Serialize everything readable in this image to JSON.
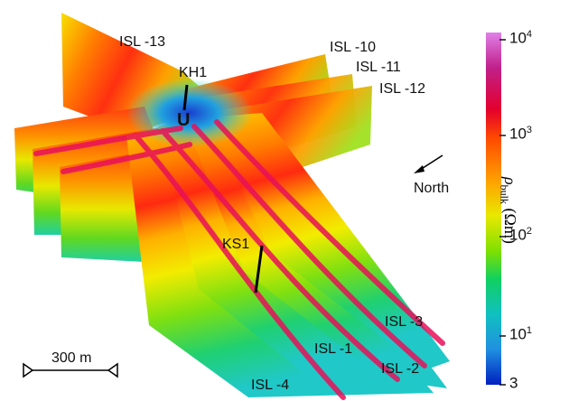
{
  "profiles": {
    "isl_13": "ISL -13",
    "isl_10": "ISL -10",
    "isl_11": "ISL -11",
    "isl_12": "ISL -12",
    "isl_1": "ISL -1",
    "isl_2": "ISL -2",
    "isl_3": "ISL -3",
    "isl_4": "ISL -4"
  },
  "boreholes": {
    "kh1": "KH1",
    "ks1": "KS1"
  },
  "anomaly_label": "U",
  "north_label": "North",
  "scale_bar_label": "300 m",
  "colorbar": {
    "title_symbol": "ρ",
    "title_subscript": "bulk",
    "title_unit": "(Ωm)",
    "ticks": [
      {
        "base": "10",
        "exp": "4"
      },
      {
        "base": "10",
        "exp": "3"
      },
      {
        "base": "10",
        "exp": "2"
      },
      {
        "base": "10",
        "exp": "1"
      },
      {
        "base": "3",
        "exp": ""
      }
    ],
    "colors": [
      "#e080e8",
      "#c0208a",
      "#e4002c",
      "#ff4a00",
      "#ffa000",
      "#e8e800",
      "#80e000",
      "#10d060",
      "#10c0c0",
      "#2090e0",
      "#0020c0"
    ]
  }
}
